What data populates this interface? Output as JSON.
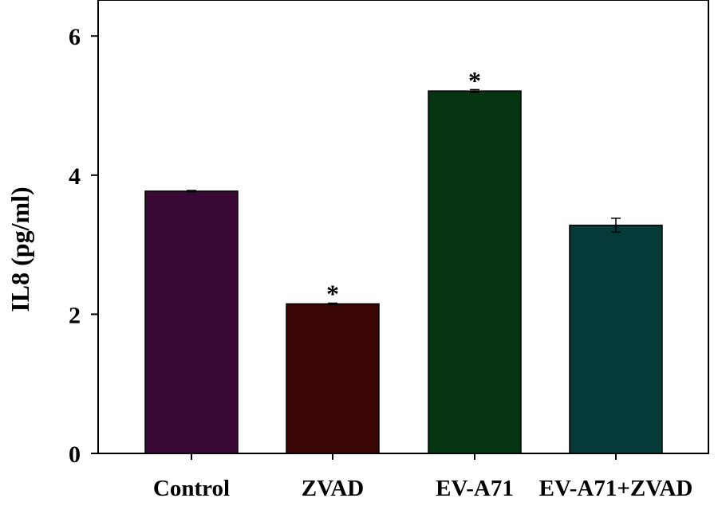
{
  "chart_data": {
    "type": "bar",
    "title": "",
    "xlabel": "",
    "ylabel": "IL8  (pg/ml)",
    "ylim": [
      0,
      6.5
    ],
    "yticks": [
      0,
      2,
      4,
      6
    ],
    "ytick_labels": [
      "0",
      "2",
      "4",
      "6"
    ],
    "categories": [
      "Control",
      "ZVAD",
      "EV-A71",
      "EV-A71+ZVAD"
    ],
    "values": [
      3.77,
      2.15,
      5.21,
      3.28
    ],
    "errors": [
      0.01,
      0.01,
      0.02,
      0.1
    ],
    "colors": [
      "#3a0835",
      "#3a0505",
      "#053410",
      "#053a38"
    ],
    "annotations": [
      "",
      "*",
      "*",
      ""
    ],
    "grid": false,
    "legend": "none"
  }
}
